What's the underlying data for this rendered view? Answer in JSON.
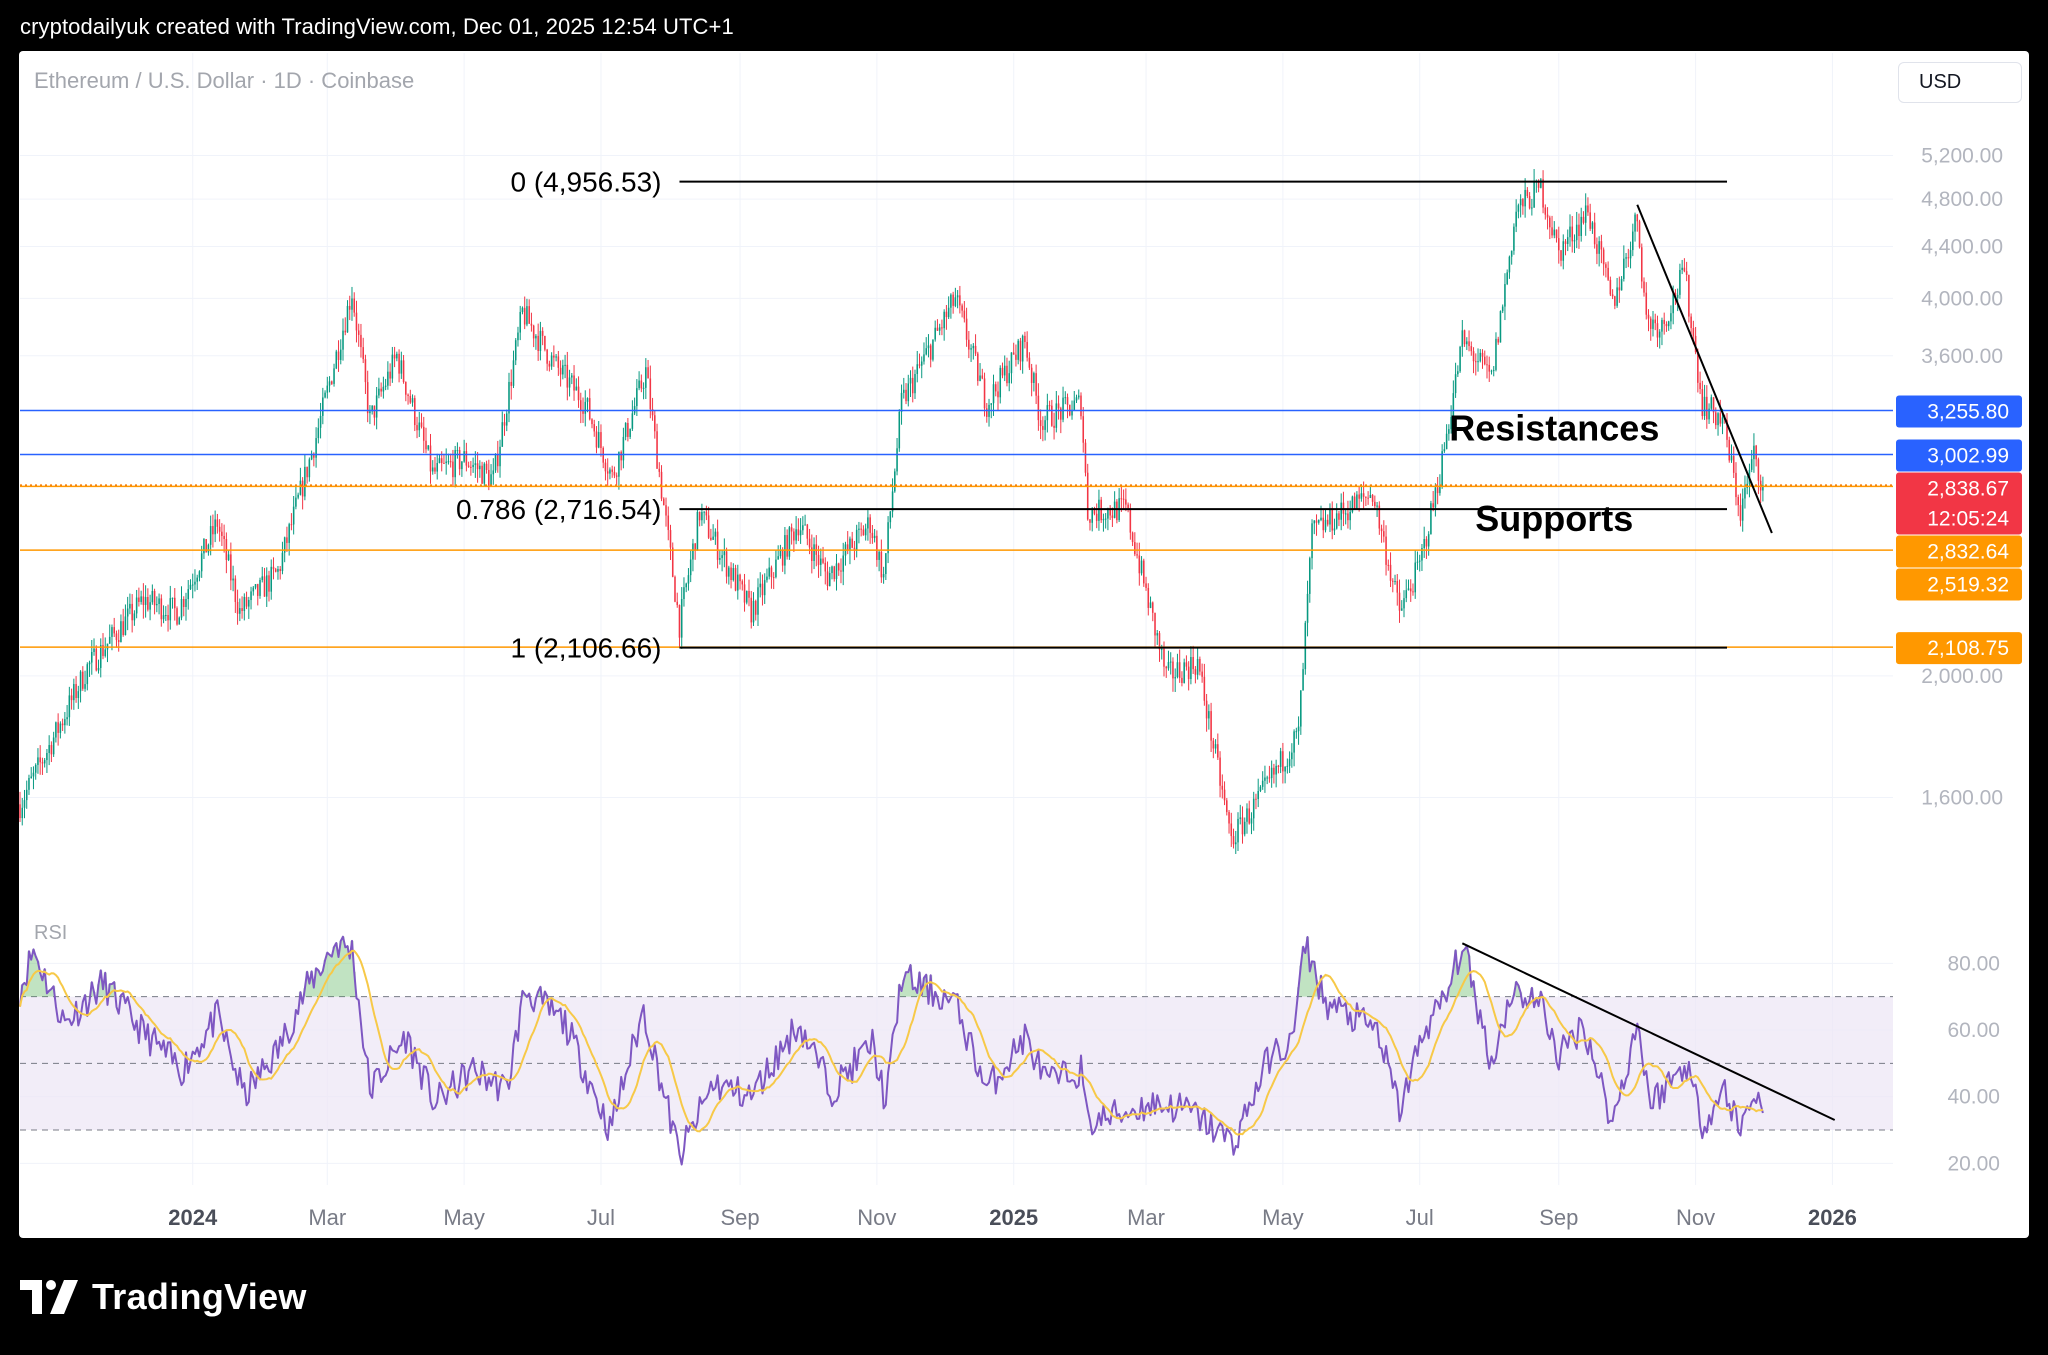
{
  "header": {
    "attribution": "cryptodailyuk created with TradingView.com, Dec 01, 2025 12:54 UTC+1"
  },
  "chart_header": {
    "symbol": "Ethereum / U.S. Dollar · 1D · Coinbase",
    "currency_button": "USD",
    "rsi_label": "RSI"
  },
  "footer": {
    "brand": "TradingView"
  },
  "colors": {
    "candle_up": "#089981",
    "candle_down": "#f23645",
    "resistance_line": "#2962ff",
    "support_line": "#ff9800",
    "current_price": "#f23645",
    "rsi_line": "#7e57c2",
    "rsi_ma": "#f7c948",
    "rsi_band_fill": "#ede7f6"
  },
  "chart_data": [
    {
      "type": "candlestick",
      "title": "Ethereum / U.S. Dollar · 1D · Coinbase",
      "x_range": [
        "2023-10-16",
        "2026-01-28"
      ],
      "y_scale": "log",
      "y_range": [
        1350,
        5550
      ],
      "y_ticks": [
        {
          "value": 5200,
          "label": "5,200.00"
        },
        {
          "value": 4800,
          "label": "4,800.00"
        },
        {
          "value": 4400,
          "label": "4,400.00"
        },
        {
          "value": 4000,
          "label": "4,000.00"
        },
        {
          "value": 3600,
          "label": "3,600.00"
        },
        {
          "value": 2000,
          "label": "2,000.00"
        },
        {
          "value": 1600,
          "label": "1,600.00"
        }
      ],
      "x_ticks": [
        {
          "date": "2024-01-01",
          "label": "2024",
          "bold": true
        },
        {
          "date": "2024-03-01",
          "label": "Mar"
        },
        {
          "date": "2024-05-01",
          "label": "May"
        },
        {
          "date": "2024-07-01",
          "label": "Jul"
        },
        {
          "date": "2024-09-01",
          "label": "Sep"
        },
        {
          "date": "2024-11-01",
          "label": "Nov"
        },
        {
          "date": "2025-01-01",
          "label": "2025",
          "bold": true
        },
        {
          "date": "2025-03-01",
          "label": "Mar"
        },
        {
          "date": "2025-05-01",
          "label": "May"
        },
        {
          "date": "2025-07-01",
          "label": "Jul"
        },
        {
          "date": "2025-09-01",
          "label": "Sep"
        },
        {
          "date": "2025-11-01",
          "label": "Nov"
        },
        {
          "date": "2026-01-01",
          "label": "2026",
          "bold": true
        }
      ],
      "price_path_anchors": [
        [
          "2023-10-16",
          1580
        ],
        [
          "2023-11-01",
          1800
        ],
        [
          "2023-11-15",
          2030
        ],
        [
          "2023-12-10",
          2300
        ],
        [
          "2023-12-25",
          2250
        ],
        [
          "2024-01-12",
          2650
        ],
        [
          "2024-01-22",
          2250
        ],
        [
          "2024-02-08",
          2420
        ],
        [
          "2024-02-25",
          3100
        ],
        [
          "2024-03-12",
          4050
        ],
        [
          "2024-03-20",
          3200
        ],
        [
          "2024-04-01",
          3600
        ],
        [
          "2024-04-17",
          2900
        ],
        [
          "2024-05-01",
          2980
        ],
        [
          "2024-05-14",
          2870
        ],
        [
          "2024-05-27",
          3900
        ],
        [
          "2024-06-10",
          3550
        ],
        [
          "2024-06-24",
          3300
        ],
        [
          "2024-07-06",
          2880
        ],
        [
          "2024-07-21",
          3500
        ],
        [
          "2024-08-05",
          2200
        ],
        [
          "2024-08-14",
          2700
        ],
        [
          "2024-09-06",
          2250
        ],
        [
          "2024-09-27",
          2650
        ],
        [
          "2024-10-10",
          2400
        ],
        [
          "2024-10-29",
          2650
        ],
        [
          "2024-11-04",
          2400
        ],
        [
          "2024-11-12",
          3300
        ],
        [
          "2024-12-06",
          4000
        ],
        [
          "2024-12-20",
          3300
        ],
        [
          "2025-01-06",
          3700
        ],
        [
          "2025-01-13",
          3200
        ],
        [
          "2025-01-31",
          3300
        ],
        [
          "2025-02-03",
          2700
        ],
        [
          "2025-02-20",
          2720
        ],
        [
          "2025-03-10",
          2000
        ],
        [
          "2025-03-24",
          2050
        ],
        [
          "2025-04-08",
          1480
        ],
        [
          "2025-04-21",
          1600
        ],
        [
          "2025-05-08",
          1800
        ],
        [
          "2025-05-14",
          2600
        ],
        [
          "2025-06-10",
          2800
        ],
        [
          "2025-06-22",
          2250
        ],
        [
          "2025-07-01",
          2450
        ],
        [
          "2025-07-10",
          2900
        ],
        [
          "2025-07-20",
          3700
        ],
        [
          "2025-08-02",
          3450
        ],
        [
          "2025-08-13",
          4700
        ],
        [
          "2025-08-24",
          4900
        ],
        [
          "2025-09-01",
          4350
        ],
        [
          "2025-09-14",
          4700
        ],
        [
          "2025-09-25",
          3950
        ],
        [
          "2025-10-06",
          4650
        ],
        [
          "2025-10-10",
          3850
        ],
        [
          "2025-10-17",
          3800
        ],
        [
          "2025-10-27",
          4200
        ],
        [
          "2025-11-04",
          3300
        ],
        [
          "2025-11-13",
          3200
        ],
        [
          "2025-11-21",
          2700
        ],
        [
          "2025-11-27",
          3000
        ],
        [
          "2025-12-01",
          2838.67
        ]
      ],
      "horizontal_levels": [
        {
          "value": 3255.8,
          "label": "3,255.80",
          "role": "resistance"
        },
        {
          "value": 3002.99,
          "label": "3,002.99",
          "role": "resistance"
        },
        {
          "value": 2832.64,
          "label": "2,832.64",
          "role": "support"
        },
        {
          "value": 2519.32,
          "label": "2,519.32",
          "role": "support"
        },
        {
          "value": 2108.75,
          "label": "2,108.75",
          "role": "support"
        }
      ],
      "current_price": {
        "value": 2838.67,
        "label": "2,838.67",
        "countdown": "12:05:24"
      },
      "fibonacci": {
        "from_date": "2024-08-05",
        "to_date": "2025-11-15",
        "levels": [
          {
            "ratio": 0,
            "value": 4956.53,
            "label": "0 (4,956.53)"
          },
          {
            "ratio": 0.786,
            "value": 2716.54,
            "label": "0.786 (2,716.54)"
          },
          {
            "ratio": 1,
            "value": 2106.66,
            "label": "1 (2,106.66)"
          }
        ]
      },
      "trendline": {
        "start": [
          "2025-10-06",
          4750
        ],
        "end": [
          "2025-12-05",
          2600
        ]
      },
      "annotations": [
        {
          "text": "Resistances",
          "date": "2025-08-30",
          "price": 3080
        },
        {
          "text": "Supports",
          "date": "2025-08-30",
          "price": 2610
        }
      ]
    },
    {
      "type": "line",
      "title": "RSI",
      "y_range": [
        15,
        90
      ],
      "y_ticks": [
        {
          "value": 80,
          "label": "80.00"
        },
        {
          "value": 60,
          "label": "60.00"
        },
        {
          "value": 40,
          "label": "40.00"
        },
        {
          "value": 20,
          "label": "20.00"
        }
      ],
      "bands": {
        "upper": 70,
        "middle": 50,
        "lower": 30
      },
      "series": [
        {
          "role": "rsi",
          "anchors": [
            [
              "2023-10-16",
              72
            ],
            [
              "2023-10-22",
              84
            ],
            [
              "2023-11-05",
              62
            ],
            [
              "2023-11-22",
              74
            ],
            [
              "2023-12-09",
              60
            ],
            [
              "2023-12-27",
              48
            ],
            [
              "2024-01-12",
              64
            ],
            [
              "2024-01-24",
              40
            ],
            [
              "2024-02-08",
              54
            ],
            [
              "2024-02-22",
              74
            ],
            [
              "2024-03-05",
              86
            ],
            [
              "2024-03-12",
              84
            ],
            [
              "2024-03-20",
              42
            ],
            [
              "2024-04-05",
              58
            ],
            [
              "2024-04-18",
              38
            ],
            [
              "2024-05-05",
              48
            ],
            [
              "2024-05-20",
              42
            ],
            [
              "2024-05-28",
              72
            ],
            [
              "2024-06-15",
              62
            ],
            [
              "2024-07-05",
              30
            ],
            [
              "2024-07-20",
              66
            ],
            [
              "2024-08-05",
              22
            ],
            [
              "2024-08-20",
              44
            ],
            [
              "2024-09-06",
              40
            ],
            [
              "2024-09-27",
              62
            ],
            [
              "2024-10-12",
              42
            ],
            [
              "2024-10-30",
              56
            ],
            [
              "2024-11-05",
              38
            ],
            [
              "2024-11-12",
              76
            ],
            [
              "2024-12-06",
              68
            ],
            [
              "2024-12-20",
              42
            ],
            [
              "2025-01-06",
              58
            ],
            [
              "2025-01-16",
              44
            ],
            [
              "2025-01-31",
              48
            ],
            [
              "2025-02-03",
              32
            ],
            [
              "2025-03-05",
              38
            ],
            [
              "2025-03-20",
              36
            ],
            [
              "2025-04-09",
              26
            ],
            [
              "2025-04-25",
              52
            ],
            [
              "2025-05-05",
              56
            ],
            [
              "2025-05-11",
              86
            ],
            [
              "2025-05-20",
              68
            ],
            [
              "2025-06-12",
              60
            ],
            [
              "2025-06-22",
              36
            ],
            [
              "2025-07-03",
              60
            ],
            [
              "2025-07-13",
              70
            ],
            [
              "2025-07-20",
              86
            ],
            [
              "2025-08-02",
              50
            ],
            [
              "2025-08-11",
              72
            ],
            [
              "2025-08-24",
              68
            ],
            [
              "2025-09-01",
              52
            ],
            [
              "2025-09-12",
              62
            ],
            [
              "2025-09-25",
              32
            ],
            [
              "2025-10-06",
              62
            ],
            [
              "2025-10-12",
              38
            ],
            [
              "2025-10-28",
              50
            ],
            [
              "2025-11-04",
              32
            ],
            [
              "2025-11-14",
              42
            ],
            [
              "2025-11-21",
              30
            ],
            [
              "2025-11-27",
              42
            ],
            [
              "2025-12-01",
              36
            ]
          ]
        },
        {
          "role": "rsi-ma",
          "smoothing_days": 14
        }
      ],
      "trendline": {
        "start": [
          "2025-07-20",
          86
        ],
        "end": [
          "2026-01-02",
          33
        ]
      }
    }
  ]
}
